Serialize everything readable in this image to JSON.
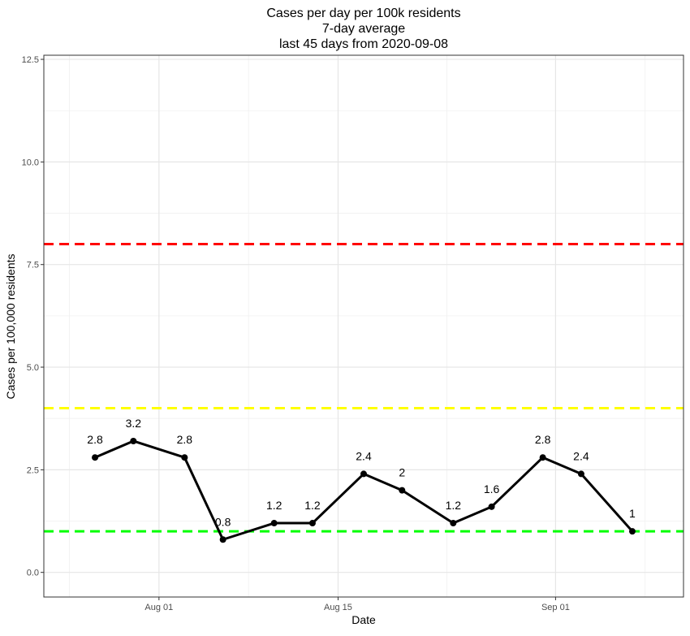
{
  "chart_data": {
    "type": "line",
    "title_lines": [
      "Cases per day per 100k residents",
      "7-day average",
      "last 45 days from 2020-09-08"
    ],
    "xlabel": "Date",
    "ylabel": "Cases per 100,000 residents",
    "ylim": [
      -0.6,
      12.6
    ],
    "y_ticks": [
      0.0,
      2.5,
      5.0,
      7.5,
      10.0,
      12.5
    ],
    "y_tick_labels": [
      "0.0",
      "2.5",
      "5.0",
      "7.5",
      "10.0",
      "12.5"
    ],
    "xlim": [
      "2020-07-23",
      "2020-09-11"
    ],
    "x_ticks": [
      "2020-08-01",
      "2020-08-15",
      "2020-09-01"
    ],
    "x_tick_labels": [
      "Aug 01",
      "Aug 15",
      "Sep 01"
    ],
    "grid": true,
    "series": [
      {
        "x": [
          "2020-07-27",
          "2020-07-30",
          "2020-08-03",
          "2020-08-06",
          "2020-08-10",
          "2020-08-13",
          "2020-08-17",
          "2020-08-20",
          "2020-08-24",
          "2020-08-27",
          "2020-08-31",
          "2020-09-03",
          "2020-09-07"
        ],
        "y": [
          2.8,
          3.2,
          2.8,
          0.8,
          1.2,
          1.2,
          2.4,
          2.0,
          1.2,
          1.6,
          2.8,
          2.4,
          1.0
        ],
        "labels": [
          "2.8",
          "3.2",
          "2.8",
          "0.8",
          "1.2",
          "1.2",
          "2.4",
          "2",
          "1.2",
          "1.6",
          "2.8",
          "2.4",
          "1"
        ],
        "color": "#000000"
      }
    ],
    "reference_lines": [
      {
        "y": 8.0,
        "color": "#ff0000",
        "style": "dashed"
      },
      {
        "y": 4.0,
        "color": "#ffff00",
        "style": "dashed"
      },
      {
        "y": 1.0,
        "color": "#00ff00",
        "style": "dashed"
      }
    ]
  }
}
